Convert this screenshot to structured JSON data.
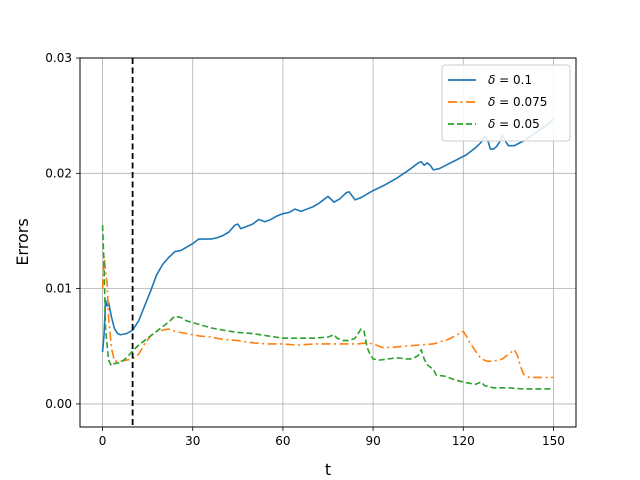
{
  "chart_data": {
    "type": "line",
    "title": "",
    "xlabel": "t",
    "ylabel": "Errors",
    "xlim": [
      -7.5,
      157.5
    ],
    "ylim": [
      -0.002,
      0.03
    ],
    "xticks": [
      0,
      30,
      60,
      90,
      120,
      150
    ],
    "xtick_labels": [
      "0",
      "30",
      "60",
      "90",
      "120",
      "150"
    ],
    "yticks": [
      0.0,
      0.01,
      0.02,
      0.03
    ],
    "ytick_labels": [
      "0.00",
      "0.01",
      "0.02",
      "0.03"
    ],
    "grid": true,
    "legend_position": "top-right",
    "vline": {
      "x": 10,
      "style": "dashed",
      "color": "#000000"
    },
    "series": [
      {
        "name": "δ = 0.1",
        "legend_prefix": "δ",
        "legend_value": "0.1",
        "color": "#1f77b4",
        "dash": "solid",
        "points": [
          [
            0,
            0.0045
          ],
          [
            0.5,
            0.006
          ],
          [
            1,
            0.009
          ],
          [
            1.5,
            0.0085
          ],
          [
            2,
            0.0088
          ],
          [
            3,
            0.0075
          ],
          [
            4,
            0.0065
          ],
          [
            5,
            0.0061
          ],
          [
            6,
            0.006
          ],
          [
            8,
            0.0061
          ],
          [
            10,
            0.0064
          ],
          [
            12,
            0.0072
          ],
          [
            14,
            0.0085
          ],
          [
            16,
            0.0098
          ],
          [
            18,
            0.0112
          ],
          [
            20,
            0.0121
          ],
          [
            22,
            0.0127
          ],
          [
            24,
            0.0132
          ],
          [
            26,
            0.0133
          ],
          [
            28,
            0.0136
          ],
          [
            30,
            0.0139
          ],
          [
            32,
            0.0143
          ],
          [
            34,
            0.0143
          ],
          [
            36,
            0.0143
          ],
          [
            38,
            0.0144
          ],
          [
            40,
            0.0146
          ],
          [
            42,
            0.0149
          ],
          [
            44,
            0.0155
          ],
          [
            45,
            0.0156
          ],
          [
            46,
            0.0152
          ],
          [
            48,
            0.0154
          ],
          [
            50,
            0.0156
          ],
          [
            52,
            0.016
          ],
          [
            54,
            0.0158
          ],
          [
            56,
            0.016
          ],
          [
            58,
            0.0163
          ],
          [
            60,
            0.0165
          ],
          [
            62,
            0.0166
          ],
          [
            64,
            0.0169
          ],
          [
            66,
            0.0167
          ],
          [
            68,
            0.0169
          ],
          [
            70,
            0.0171
          ],
          [
            72,
            0.0174
          ],
          [
            74,
            0.0178
          ],
          [
            75,
            0.018
          ],
          [
            77,
            0.0175
          ],
          [
            79,
            0.0178
          ],
          [
            81,
            0.0183
          ],
          [
            82,
            0.0184
          ],
          [
            84,
            0.0177
          ],
          [
            86,
            0.0179
          ],
          [
            88,
            0.0182
          ],
          [
            90,
            0.0185
          ],
          [
            94,
            0.019
          ],
          [
            98,
            0.0196
          ],
          [
            102,
            0.0203
          ],
          [
            105,
            0.0209
          ],
          [
            106,
            0.021
          ],
          [
            107,
            0.0207
          ],
          [
            108,
            0.0209
          ],
          [
            109,
            0.0207
          ],
          [
            110,
            0.0203
          ],
          [
            112,
            0.0204
          ],
          [
            115,
            0.0208
          ],
          [
            118,
            0.0212
          ],
          [
            121,
            0.0216
          ],
          [
            124,
            0.0222
          ],
          [
            126,
            0.0227
          ],
          [
            127,
            0.0232
          ],
          [
            128,
            0.023
          ],
          [
            129,
            0.0221
          ],
          [
            130,
            0.0221
          ],
          [
            131,
            0.0223
          ],
          [
            132,
            0.0227
          ],
          [
            133,
            0.0233
          ],
          [
            134,
            0.0228
          ],
          [
            135,
            0.0224
          ],
          [
            137,
            0.0224
          ],
          [
            140,
            0.0228
          ],
          [
            144,
            0.0235
          ],
          [
            148,
            0.0242
          ],
          [
            150,
            0.0247
          ]
        ]
      },
      {
        "name": "δ = 0.075",
        "legend_prefix": "δ",
        "legend_value": "0.075",
        "color": "#ff7f0e",
        "dash": "dashdot",
        "points": [
          [
            0,
            0.01
          ],
          [
            0.5,
            0.0128
          ],
          [
            1,
            0.0115
          ],
          [
            1.5,
            0.0106
          ],
          [
            2,
            0.0075
          ],
          [
            3,
            0.0048
          ],
          [
            4,
            0.0037
          ],
          [
            6,
            0.0037
          ],
          [
            8,
            0.0038
          ],
          [
            10,
            0.0039
          ],
          [
            12,
            0.0043
          ],
          [
            14,
            0.0052
          ],
          [
            16,
            0.0059
          ],
          [
            18,
            0.0063
          ],
          [
            20,
            0.0064
          ],
          [
            22,
            0.0065
          ],
          [
            24,
            0.0063
          ],
          [
            28,
            0.0061
          ],
          [
            32,
            0.0059
          ],
          [
            36,
            0.0058
          ],
          [
            40,
            0.0056
          ],
          [
            45,
            0.0055
          ],
          [
            50,
            0.0053
          ],
          [
            55,
            0.0052
          ],
          [
            60,
            0.0052
          ],
          [
            65,
            0.0051
          ],
          [
            70,
            0.0052
          ],
          [
            75,
            0.0052
          ],
          [
            80,
            0.0052
          ],
          [
            85,
            0.0052
          ],
          [
            88,
            0.0053
          ],
          [
            90,
            0.0052
          ],
          [
            93,
            0.0049
          ],
          [
            96,
            0.0049
          ],
          [
            100,
            0.005
          ],
          [
            105,
            0.0051
          ],
          [
            110,
            0.0052
          ],
          [
            115,
            0.0056
          ],
          [
            118,
            0.006
          ],
          [
            120,
            0.0063
          ],
          [
            121,
            0.0059
          ],
          [
            122,
            0.0054
          ],
          [
            124,
            0.0046
          ],
          [
            126,
            0.0039
          ],
          [
            128,
            0.0037
          ],
          [
            130,
            0.0037
          ],
          [
            133,
            0.0039
          ],
          [
            136,
            0.0045
          ],
          [
            137,
            0.0047
          ],
          [
            138,
            0.0042
          ],
          [
            139,
            0.0033
          ],
          [
            140,
            0.0026
          ],
          [
            142,
            0.0023
          ],
          [
            146,
            0.0023
          ],
          [
            150,
            0.0023
          ]
        ]
      },
      {
        "name": "δ = 0.05",
        "legend_prefix": "δ",
        "legend_value": "0.05",
        "color": "#2ca02c",
        "dash": "dashed",
        "points": [
          [
            0,
            0.0155
          ],
          [
            0.5,
            0.012
          ],
          [
            1,
            0.0065
          ],
          [
            2,
            0.0038
          ],
          [
            3,
            0.0033
          ],
          [
            4,
            0.0035
          ],
          [
            6,
            0.0036
          ],
          [
            8,
            0.004
          ],
          [
            10,
            0.0046
          ],
          [
            12,
            0.0051
          ],
          [
            14,
            0.0055
          ],
          [
            16,
            0.0059
          ],
          [
            18,
            0.0063
          ],
          [
            20,
            0.0067
          ],
          [
            22,
            0.0071
          ],
          [
            24,
            0.0076
          ],
          [
            26,
            0.0075
          ],
          [
            28,
            0.0072
          ],
          [
            32,
            0.0069
          ],
          [
            36,
            0.0066
          ],
          [
            40,
            0.0064
          ],
          [
            45,
            0.0062
          ],
          [
            50,
            0.0061
          ],
          [
            55,
            0.0059
          ],
          [
            60,
            0.0057
          ],
          [
            65,
            0.0057
          ],
          [
            70,
            0.0057
          ],
          [
            75,
            0.0058
          ],
          [
            77,
            0.006
          ],
          [
            78,
            0.0057
          ],
          [
            80,
            0.0055
          ],
          [
            82,
            0.0055
          ],
          [
            84,
            0.0057
          ],
          [
            86,
            0.0065
          ],
          [
            87,
            0.0063
          ],
          [
            88,
            0.0049
          ],
          [
            89,
            0.0043
          ],
          [
            90,
            0.0039
          ],
          [
            92,
            0.0038
          ],
          [
            95,
            0.0039
          ],
          [
            98,
            0.004
          ],
          [
            101,
            0.0039
          ],
          [
            103,
            0.0039
          ],
          [
            105,
            0.0042
          ],
          [
            106,
            0.0047
          ],
          [
            107,
            0.0039
          ],
          [
            108,
            0.0034
          ],
          [
            110,
            0.003
          ],
          [
            111,
            0.0025
          ],
          [
            114,
            0.0024
          ],
          [
            117,
            0.0021
          ],
          [
            120,
            0.0019
          ],
          [
            122,
            0.0018
          ],
          [
            124,
            0.0017
          ],
          [
            126,
            0.0019
          ],
          [
            127,
            0.0016
          ],
          [
            130,
            0.0014
          ],
          [
            135,
            0.0014
          ],
          [
            140,
            0.0013
          ],
          [
            145,
            0.0013
          ],
          [
            150,
            0.0013
          ]
        ]
      }
    ]
  }
}
